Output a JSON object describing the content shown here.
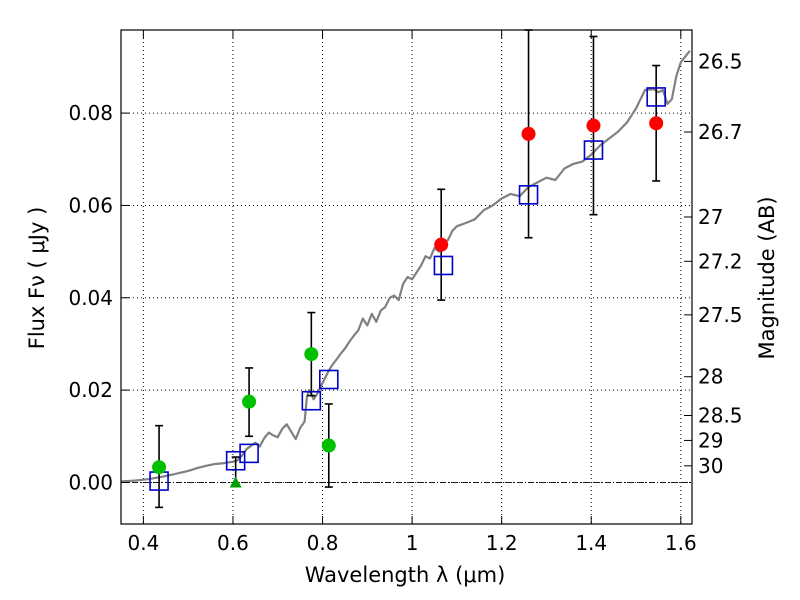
{
  "chart_data": {
    "type": "scatter",
    "xlabel": "Wavelength  λ (μm)",
    "ylabel": "Flux  Fν ( μJy )",
    "ylabel2": "Magnitude (AB)",
    "xlim": [
      0.35,
      1.625
    ],
    "ylim": [
      -0.009,
      0.098
    ],
    "xticks": [
      0.4,
      0.6,
      0.8,
      1.0,
      1.2,
      1.4,
      1.6
    ],
    "xtick_labels": [
      "0.4",
      "0.6",
      "0.8",
      "1",
      "1.2",
      "1.4",
      "1.6"
    ],
    "yticks": [
      0.0,
      0.02,
      0.04,
      0.06,
      0.08
    ],
    "ytick_labels": [
      "0.00",
      "0.02",
      "0.04",
      "0.06",
      "0.08"
    ],
    "right_ticks": [
      {
        "label": "26.5",
        "flux": 0.0912
      },
      {
        "label": "26.7",
        "flux": 0.0759
      },
      {
        "label": "27",
        "flux": 0.0575
      },
      {
        "label": "27.2",
        "flux": 0.0479
      },
      {
        "label": "27.5",
        "flux": 0.0363
      },
      {
        "label": "28",
        "flux": 0.0229
      },
      {
        "label": "28.5",
        "flux": 0.0145
      },
      {
        "label": "29",
        "flux": 0.0091
      },
      {
        "label": "30",
        "flux": 0.0036
      }
    ],
    "grid": true,
    "colors": {
      "model": "#808080",
      "detection_red": "#ff0000",
      "detection_green": "#00c000",
      "upper_limit": "#00a000",
      "model_photometry": "#0000cc",
      "errorbar": "#000000"
    },
    "sed_model": {
      "x": [
        0.35,
        0.38,
        0.41,
        0.44,
        0.47,
        0.5,
        0.52,
        0.54,
        0.56,
        0.58,
        0.6,
        0.61,
        0.62,
        0.63,
        0.65,
        0.66,
        0.67,
        0.68,
        0.69,
        0.7,
        0.71,
        0.72,
        0.73,
        0.74,
        0.75,
        0.76,
        0.765,
        0.77,
        0.775,
        0.78,
        0.79,
        0.8,
        0.81,
        0.82,
        0.83,
        0.84,
        0.85,
        0.86,
        0.87,
        0.88,
        0.89,
        0.9,
        0.91,
        0.92,
        0.93,
        0.94,
        0.95,
        0.96,
        0.97,
        0.98,
        0.99,
        1.0,
        1.01,
        1.02,
        1.03,
        1.04,
        1.05,
        1.06,
        1.07,
        1.08,
        1.09,
        1.1,
        1.12,
        1.14,
        1.16,
        1.18,
        1.2,
        1.22,
        1.24,
        1.26,
        1.28,
        1.3,
        1.32,
        1.34,
        1.36,
        1.38,
        1.4,
        1.42,
        1.44,
        1.46,
        1.48,
        1.5,
        1.52,
        1.54,
        1.55,
        1.56,
        1.57,
        1.58,
        1.59,
        1.6,
        1.62
      ],
      "y": [
        0.0002,
        0.0004,
        0.0007,
        0.0012,
        0.0018,
        0.0025,
        0.0031,
        0.0036,
        0.004,
        0.0042,
        0.0045,
        0.0048,
        0.0058,
        0.0072,
        0.0086,
        0.0078,
        0.0096,
        0.0108,
        0.0102,
        0.0098,
        0.0116,
        0.0126,
        0.011,
        0.0094,
        0.0118,
        0.0132,
        0.0185,
        0.02,
        0.0192,
        0.018,
        0.0195,
        0.0215,
        0.0235,
        0.0252,
        0.0265,
        0.0278,
        0.029,
        0.0305,
        0.0318,
        0.033,
        0.0355,
        0.034,
        0.0365,
        0.0348,
        0.0372,
        0.038,
        0.04,
        0.0405,
        0.0395,
        0.043,
        0.0445,
        0.044,
        0.0455,
        0.047,
        0.049,
        0.0485,
        0.0508,
        0.05,
        0.052,
        0.0525,
        0.0545,
        0.0555,
        0.0562,
        0.057,
        0.059,
        0.06,
        0.0615,
        0.0625,
        0.062,
        0.064,
        0.065,
        0.066,
        0.0655,
        0.068,
        0.069,
        0.0695,
        0.071,
        0.073,
        0.0745,
        0.076,
        0.078,
        0.081,
        0.085,
        0.0852,
        0.0845,
        0.085,
        0.082,
        0.083,
        0.088,
        0.091,
        0.0935
      ]
    },
    "detections": [
      {
        "x": 0.435,
        "y": 0.0033,
        "yerr_low": 0.0087,
        "yerr_high": 0.009,
        "color": "#00c000"
      },
      {
        "x": 0.636,
        "y": 0.0175,
        "yerr_low": 0.0075,
        "yerr_high": 0.0073,
        "color": "#00c000"
      },
      {
        "x": 0.775,
        "y": 0.0278,
        "yerr_low": 0.009,
        "yerr_high": 0.009,
        "color": "#00c000"
      },
      {
        "x": 0.814,
        "y": 0.008,
        "yerr_low": 0.009,
        "yerr_high": 0.009,
        "color": "#00c000"
      },
      {
        "x": 1.065,
        "y": 0.0515,
        "yerr_low": 0.012,
        "yerr_high": 0.012,
        "color": "#ff0000"
      },
      {
        "x": 1.26,
        "y": 0.0755,
        "yerr_low": 0.0225,
        "yerr_high": 0.0225,
        "color": "#ff0000"
      },
      {
        "x": 1.405,
        "y": 0.0773,
        "yerr_low": 0.0193,
        "yerr_high": 0.0193,
        "color": "#ff0000"
      },
      {
        "x": 1.545,
        "y": 0.0778,
        "yerr_low": 0.0125,
        "yerr_high": 0.0125,
        "color": "#ff0000"
      }
    ],
    "upper_limits": [
      {
        "x": 0.606,
        "y": 0.0,
        "yerr_high": 0.0055,
        "color": "#00a000"
      }
    ],
    "model_photometry": {
      "x": [
        0.435,
        0.606,
        0.636,
        0.775,
        0.814,
        1.07,
        1.26,
        1.405,
        1.545
      ],
      "y": [
        0.0003,
        0.0047,
        0.0063,
        0.0177,
        0.0223,
        0.047,
        0.0623,
        0.072,
        0.0835
      ]
    }
  }
}
